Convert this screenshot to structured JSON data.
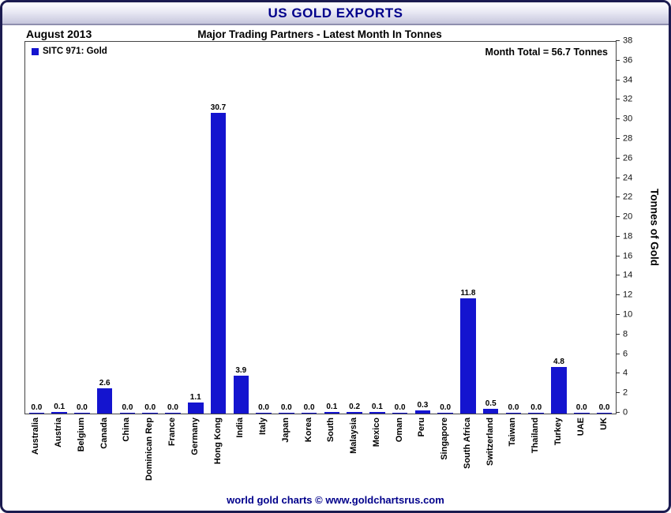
{
  "title_bar": {
    "title": "US GOLD EXPORTS"
  },
  "header": {
    "date": "August 2013",
    "title": "Major Trading Partners - Latest Month In Tonnes"
  },
  "legend": {
    "label": "SITC 971: Gold"
  },
  "annotations": {
    "month_total": "Month Total = 56.7 Tonnes"
  },
  "footer": {
    "text": "world gold charts © www.goldchartsrus.com"
  },
  "colors": {
    "bar": "#1414cf",
    "title_text": "#00008b",
    "frame_border": "#1c1c50"
  },
  "chart_data": {
    "type": "bar",
    "title": "Major Trading Partners - Latest Month In Tonnes",
    "series_label": "SITC 971: Gold",
    "ylabel": "Tonnes of Gold",
    "xlabel": "",
    "ylim": [
      0,
      38
    ],
    "ytick_step": 2,
    "grid": false,
    "legend_position": "top-left",
    "month_total_tonnes": 56.7,
    "categories": [
      "Australia",
      "Austria",
      "Belgium",
      "Canada",
      "China",
      "Dominican Rep",
      "France",
      "Germany",
      "Hong Kong",
      "India",
      "Italy",
      "Japan",
      "Korea",
      "South",
      "Malaysia",
      "Mexico",
      "Oman",
      "Peru",
      "Singapore",
      "South Africa",
      "Switzerland",
      "Taiwan",
      "Thailand",
      "Turkey",
      "UAE",
      "UK"
    ],
    "values": [
      0.0,
      0.1,
      0.0,
      2.6,
      0.0,
      0.0,
      0.0,
      1.1,
      30.7,
      3.9,
      0.0,
      0.0,
      0.0,
      0.1,
      0.2,
      0.1,
      0.0,
      0.3,
      0.0,
      11.8,
      0.5,
      0.0,
      0.0,
      4.8,
      0.0,
      0.0
    ],
    "value_labels": [
      "0.0",
      "0.1",
      "0.0",
      "2.6",
      "0.0",
      "0.0",
      "0.0",
      "1.1",
      "30.7",
      "3.9",
      "0.0",
      "0.0",
      "0.0",
      "0.1",
      "0.2",
      "0.1",
      "0.0",
      "0.3",
      "0.0",
      "11.8",
      "0.5",
      "0.0",
      "0.0",
      "4.8",
      "0.0",
      "0.0"
    ]
  }
}
